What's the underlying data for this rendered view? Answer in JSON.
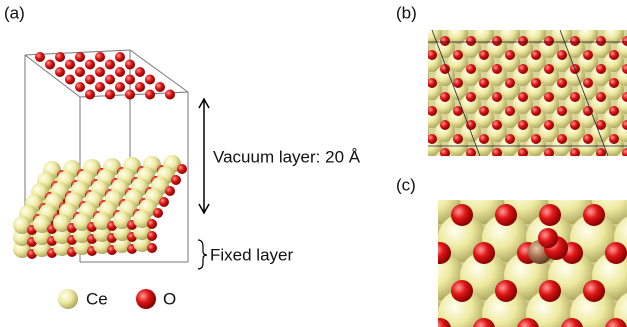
{
  "panels": {
    "a": {
      "label": "(a)",
      "vacuum_label": "Vacuum layer: 20 Å",
      "fixed_label": "Fixed layer"
    },
    "b": {
      "label": "(b)"
    },
    "c": {
      "label": "(c)"
    }
  },
  "legend": {
    "items": [
      {
        "label": "Ce"
      },
      {
        "label": "O"
      }
    ]
  }
}
